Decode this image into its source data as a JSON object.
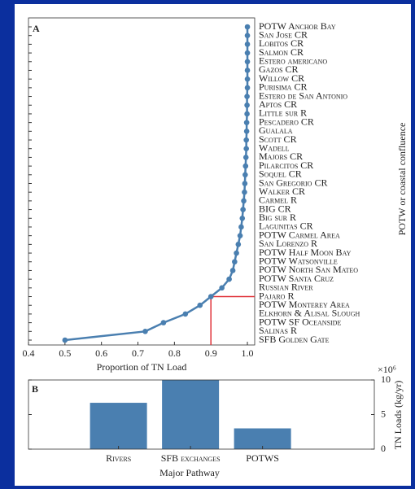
{
  "chart_data": [
    {
      "type": "line",
      "panel_label": "A",
      "orientation": "horizontal",
      "xlabel": "Proportion of TN Load",
      "ylabel": "POTW or coastal confluence",
      "categories": [
        "POTW Anchor Bay",
        "San Jose CR",
        "Lobitos CR",
        "Salmon CR",
        "Estero americano",
        "Gazos CR",
        "Willow CR",
        "Purisima CR",
        "Estero de San Antonio",
        "Aptos CR",
        "Little sur R",
        "Pescadero CR",
        "Gualala",
        "Scott CR",
        "Wadell",
        "Majors CR",
        "Pilarcitos CR",
        "Soquel CR",
        "San Gregorio CR",
        "Walker CR",
        "Carmel R",
        "BIG CR",
        "Big sur R",
        "Lagunitas CR",
        "POTW Carmel Area",
        "San Lorenzo R",
        "POTW Half Moon Bay",
        "POTW Watsonville",
        "POTW North San Mateo",
        "POTW Santa Cruz",
        "Russian River",
        "Pajaro R",
        "POTW Monterey Area",
        "Elkhorn & Alisal Slough",
        "POTW SF Oceanside",
        "Salinas R",
        "SFB Golden Gate"
      ],
      "values": [
        1,
        1,
        1,
        1,
        1,
        1,
        1,
        1,
        0.999,
        0.999,
        0.999,
        0.998,
        0.998,
        0.997,
        0.997,
        0.996,
        0.995,
        0.994,
        0.993,
        0.992,
        0.99,
        0.988,
        0.986,
        0.983,
        0.98,
        0.975,
        0.97,
        0.965,
        0.96,
        0.95,
        0.93,
        0.9,
        0.87,
        0.83,
        0.77,
        0.72,
        0.5
      ],
      "color": "#4a7fb0",
      "reference_x": 0.9,
      "reference_color": "#e0343a",
      "xlim": [
        0.4,
        1.02
      ],
      "xticks": [
        0.4,
        0.5,
        0.6,
        0.7,
        0.8,
        0.9,
        {
          "value": 1,
          "label": "1.0"
        }
      ]
    },
    {
      "type": "bar",
      "panel_label": "B",
      "xlabel": "Major Pathway",
      "ylabel": "TN Loads (kg/yr)",
      "y_multiplier": "×10⁶",
      "categories": [
        "Rivers",
        "SFB exchanges",
        "POTWS"
      ],
      "values": [
        6.7,
        10,
        3.0
      ],
      "color": "#4a7fb0",
      "ylim": [
        0,
        10
      ],
      "yticks": [
        0,
        5,
        10
      ]
    }
  ]
}
